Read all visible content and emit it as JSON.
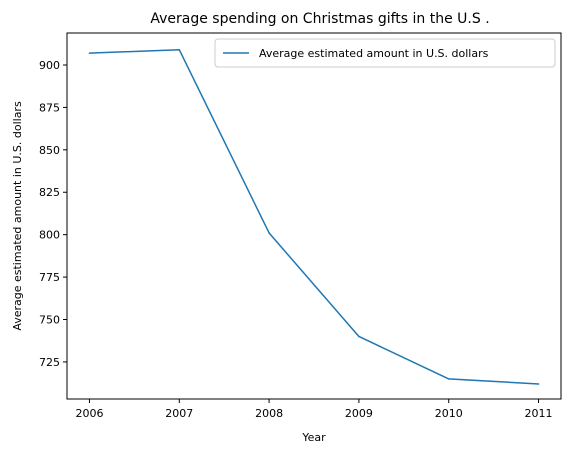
{
  "chart_data": {
    "type": "line",
    "title": "Average spending on Christmas gifts in the U.S .",
    "xlabel": "Year",
    "ylabel": "Average estimated amount in U.S. dollars",
    "x": [
      2006,
      2007,
      2008,
      2009,
      2010,
      2011
    ],
    "x_ticks": [
      "2006",
      "2007",
      "2008",
      "2009",
      "2010",
      "2011"
    ],
    "y_ticks": [
      "725",
      "750",
      "775",
      "800",
      "825",
      "850",
      "875",
      "900"
    ],
    "y_tick_values": [
      725,
      750,
      775,
      800,
      825,
      850,
      875,
      900
    ],
    "xlim": [
      2005.75,
      2011.25
    ],
    "ylim": [
      703.15,
      918.85
    ],
    "series": [
      {
        "name": "Average estimated amount in U.S. dollars",
        "color": "#1f77b4",
        "values": [
          907,
          909,
          801,
          740,
          715,
          712
        ]
      }
    ],
    "legend_position": "upper-right",
    "grid": false
  }
}
